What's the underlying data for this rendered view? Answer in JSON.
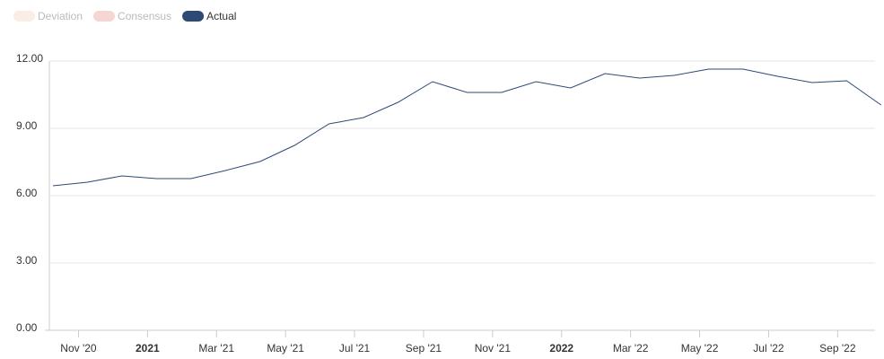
{
  "chart_data": {
    "type": "line",
    "legend": [
      {
        "name": "Deviation",
        "color": "#fbece6"
      },
      {
        "name": "Consensus",
        "color": "#f6d6d2"
      }
    ],
    "categories": [
      null,
      "Nov '20",
      null,
      "2021",
      null,
      "Mar '21",
      null,
      "May '21",
      null,
      "Jul '21",
      null,
      "Sep '21",
      null,
      "Nov '21",
      null,
      "2022",
      null,
      "Mar '22",
      null,
      "May '22",
      null,
      "Jul '22",
      null,
      "Sep '22",
      null
    ],
    "series": [
      {
        "name": "Actual",
        "color": "#2c4a74",
        "values": [
          6.44,
          6.6,
          6.88,
          6.76,
          6.76,
          7.12,
          7.52,
          8.24,
          9.2,
          9.48,
          10.16,
          11.08,
          10.6,
          10.6,
          11.08,
          10.8,
          11.44,
          11.24,
          11.36,
          11.64,
          11.64,
          11.32,
          11.04,
          11.12,
          10.04
        ]
      }
    ],
    "ylim": [
      0,
      12
    ],
    "yticks": [
      {
        "value": 0,
        "label": "0.00"
      },
      {
        "value": 3,
        "label": "3.00"
      },
      {
        "value": 6,
        "label": "6.00"
      },
      {
        "value": 9,
        "label": "9.00"
      },
      {
        "value": 12,
        "label": "12.00"
      }
    ],
    "grid": true
  }
}
